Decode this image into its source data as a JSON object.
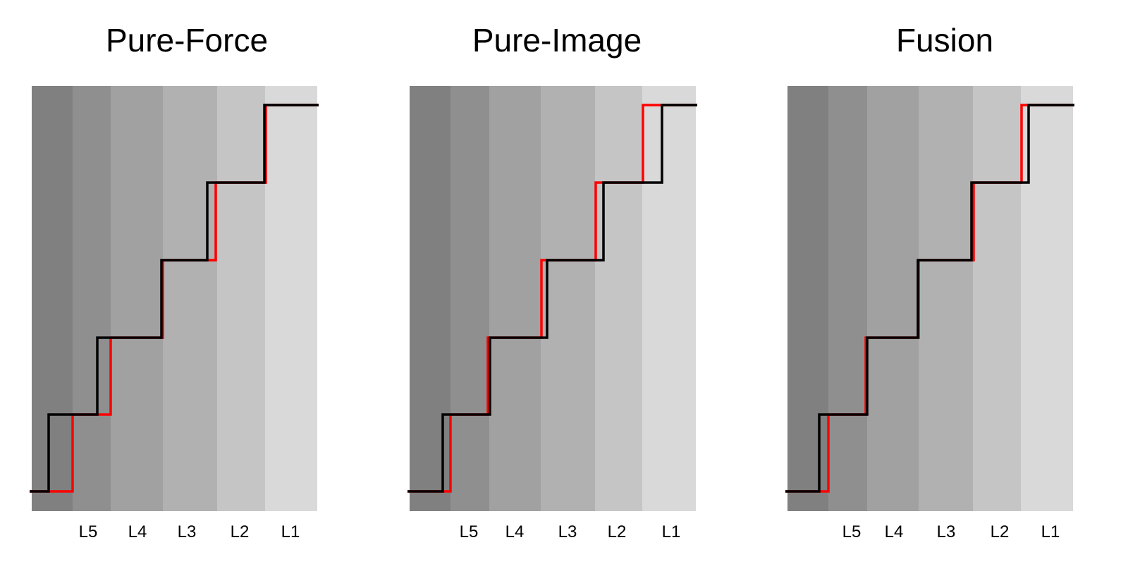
{
  "panels": [
    {
      "title": "Pure-Force",
      "labels": [
        "L5",
        "L4",
        "L3",
        "L2",
        "L1"
      ]
    },
    {
      "title": "Pure-Image",
      "labels": [
        "L5",
        "L4",
        "L3",
        "L2",
        "L1"
      ]
    },
    {
      "title": "Fusion",
      "labels": [
        "L5",
        "L4",
        "L3",
        "L2",
        "L1"
      ]
    }
  ]
}
